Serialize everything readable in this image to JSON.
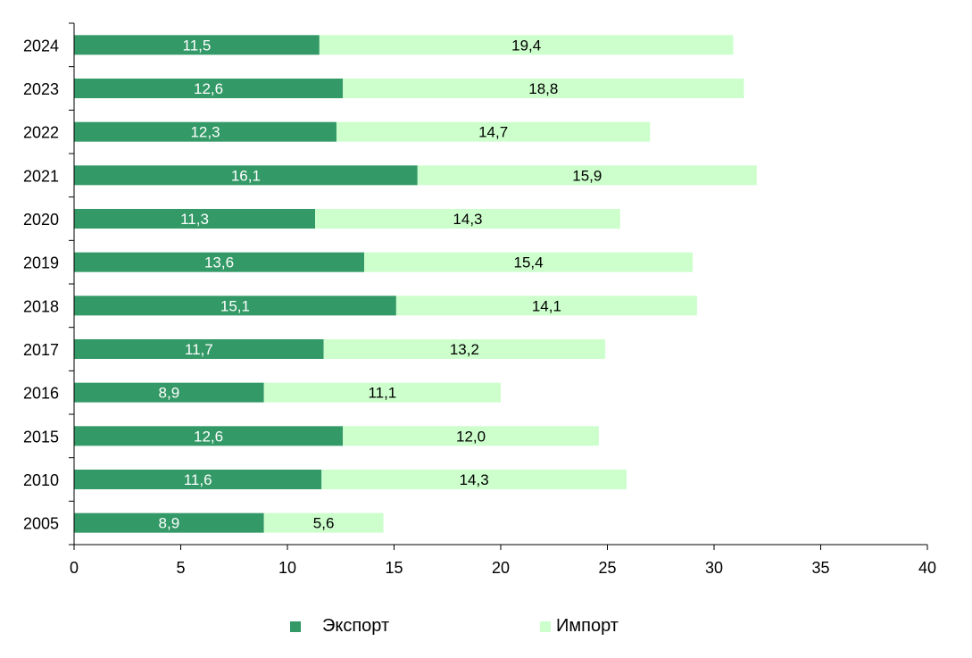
{
  "chart_data": {
    "type": "bar",
    "orientation": "horizontal",
    "stacked": true,
    "categories": [
      "2024",
      "2023",
      "2022",
      "2021",
      "2020",
      "2019",
      "2018",
      "2017",
      "2016",
      "2015",
      "2010",
      "2005"
    ],
    "series": [
      {
        "name": "Экспорт",
        "color": "#339966",
        "values": [
          11.5,
          12.6,
          12.3,
          16.1,
          11.3,
          13.6,
          15.1,
          11.7,
          8.9,
          12.6,
          11.6,
          8.9
        ],
        "labels": [
          "11,5",
          "12,6",
          "12,3",
          "16,1",
          "11,3",
          "13,6",
          "15,1",
          "11,7",
          "8,9",
          "12,6",
          "11,6",
          "8,9"
        ]
      },
      {
        "name": "Импорт",
        "color": "#ccffcc",
        "values": [
          19.4,
          18.8,
          14.7,
          15.9,
          14.3,
          15.4,
          14.1,
          13.2,
          11.1,
          12.0,
          14.3,
          5.6
        ],
        "labels": [
          "19,4",
          "18,8",
          "14,7",
          "15,9",
          "14,3",
          "15,4",
          "14,1",
          "13,2",
          "11,1",
          "12,0",
          "14,3",
          "5,6"
        ]
      }
    ],
    "xlim": [
      0,
      40
    ],
    "xticks": [
      "0",
      "5",
      "10",
      "15",
      "20",
      "25",
      "30",
      "35",
      "40"
    ],
    "grid": false,
    "legend_position": "bottom"
  }
}
